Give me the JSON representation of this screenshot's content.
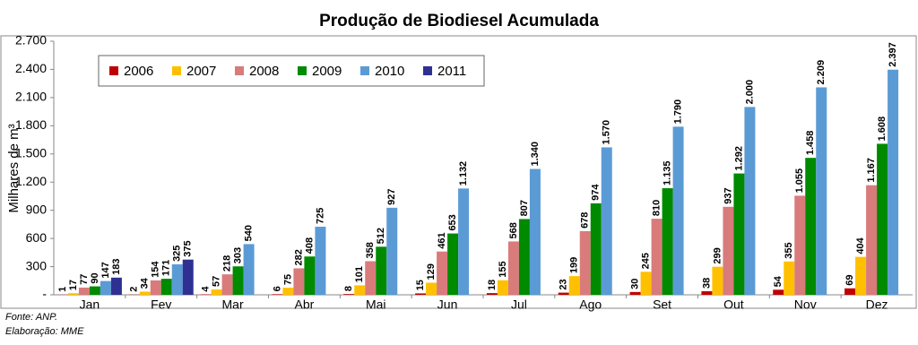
{
  "chart_data": {
    "type": "bar",
    "title": "Produção de Biodiesel Acumulada",
    "y_label": "Milhares de m³",
    "notes": [
      "Fonte: ANP.",
      "Elaboração: MME"
    ],
    "categories": [
      "Jan",
      "Fev",
      "Mar",
      "Abr",
      "Mai",
      "Jun",
      "Jul",
      "Ago",
      "Set",
      "Out",
      "Nov",
      "Dez"
    ],
    "series": [
      {
        "name": "2006",
        "color": "#c00000",
        "values": [
          1,
          2,
          4,
          6,
          8,
          15,
          18,
          23,
          30,
          38,
          54,
          69
        ],
        "value_labels": [
          "1",
          "2",
          "4",
          "6",
          "8",
          "15",
          "18",
          "23",
          "30",
          "38",
          "54",
          "69"
        ]
      },
      {
        "name": "2007",
        "color": "#ffc000",
        "values": [
          17,
          34,
          57,
          75,
          101,
          129,
          155,
          199,
          245,
          299,
          355,
          404
        ],
        "value_labels": [
          "17",
          "34",
          "57",
          "75",
          "101",
          "129",
          "155",
          "199",
          "245",
          "299",
          "355",
          "404"
        ]
      },
      {
        "name": "2008",
        "color": "#d97b7b",
        "values": [
          77,
          154,
          218,
          282,
          358,
          461,
          568,
          678,
          810,
          937,
          1055,
          1167
        ],
        "value_labels": [
          "77",
          "154",
          "218",
          "282",
          "358",
          "461",
          "568",
          "678",
          "810",
          "937",
          "1.055",
          "1.167"
        ]
      },
      {
        "name": "2009",
        "color": "#008a00",
        "values": [
          90,
          171,
          303,
          408,
          512,
          653,
          807,
          974,
          1135,
          1292,
          1458,
          1608
        ],
        "value_labels": [
          "90",
          "171",
          "303",
          "408",
          "512",
          "653",
          "807",
          "974",
          "1.135",
          "1.292",
          "1.458",
          "1.608"
        ]
      },
      {
        "name": "2010",
        "color": "#5b9bd5",
        "values": [
          147,
          325,
          540,
          725,
          927,
          1132,
          1340,
          1570,
          1790,
          2000,
          2209,
          2397
        ],
        "value_labels": [
          "147",
          "325",
          "540",
          "725",
          "927",
          "1.132",
          "1.340",
          "1.570",
          "1.790",
          "2.000",
          "2.209",
          "2.397"
        ]
      },
      {
        "name": "2011",
        "color": "#2e3192",
        "values": [
          183,
          375,
          null,
          null,
          null,
          null,
          null,
          null,
          null,
          null,
          null,
          null
        ],
        "value_labels": [
          "183",
          "375",
          null,
          null,
          null,
          null,
          null,
          null,
          null,
          null,
          null,
          null
        ]
      }
    ],
    "ylim": [
      0,
      2700
    ],
    "yticks": [
      {
        "value": 0,
        "label": "-"
      },
      300,
      600,
      900,
      {
        "value": 1200,
        "label": "1.200"
      },
      {
        "value": 1500,
        "label": "1.500"
      },
      {
        "value": 1800,
        "label": "1.800"
      },
      {
        "value": 2100,
        "label": "2.100"
      },
      {
        "value": 2400,
        "label": "2.400"
      },
      {
        "value": 2700,
        "label": "2.700"
      }
    ],
    "grid": false,
    "legend": "top-left"
  }
}
